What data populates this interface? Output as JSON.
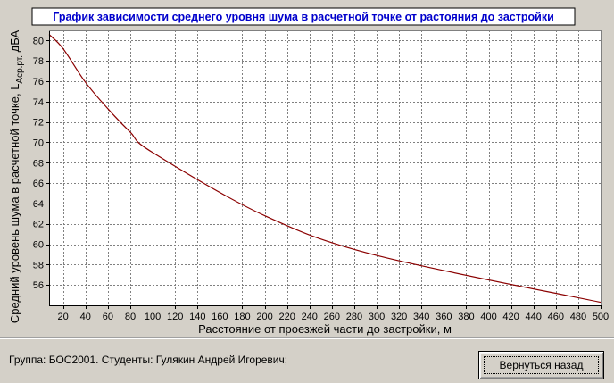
{
  "chart_data": {
    "type": "line",
    "title": "График зависимости среднего уровня шума в расчетной точке от растояния до застройки",
    "xlabel": "Расстояние от проезжей части до застройки, м",
    "ylabel_main": "Средний уровень шума в расчетной точке, L",
    "ylabel_sub": "Аср.рт.",
    "ylabel_unit": " дБА",
    "xlim": [
      7.5,
      500
    ],
    "ylim": [
      54,
      81
    ],
    "x_ticks": [
      20,
      40,
      60,
      80,
      100,
      120,
      140,
      160,
      180,
      200,
      220,
      240,
      260,
      280,
      300,
      320,
      340,
      360,
      380,
      400,
      420,
      440,
      460,
      480,
      500
    ],
    "x_tick_labels": [
      "20",
      "40",
      "60",
      "80",
      "100",
      "120",
      "140",
      "160",
      "180",
      "200",
      "220",
      "240",
      "260",
      "280",
      "300",
      "320",
      "340",
      "360",
      "380",
      "400",
      "420",
      "440",
      "460",
      "480",
      "500"
    ],
    "y_ticks": [
      56,
      58,
      60,
      62,
      64,
      66,
      68,
      70,
      72,
      74,
      76,
      78,
      80
    ],
    "y_tick_labels": [
      "56",
      "58",
      "60",
      "62",
      "64",
      "66",
      "68",
      "70",
      "72",
      "74",
      "76",
      "78",
      "80"
    ],
    "grid": true,
    "series": [
      {
        "color": "#8b0000",
        "x": [
          7.5,
          20,
          40,
          60,
          80,
          100,
          200,
          300,
          500
        ],
        "y": [
          80.6,
          79.2,
          75.9,
          73.3,
          71.0,
          69.0,
          62.8,
          58.9,
          54.3
        ]
      }
    ]
  },
  "footer": {
    "info": "Группа: БОС2001. Студенты: Гулякин Андрей Игоревич;",
    "back_button_label": "Вернуться назад"
  }
}
